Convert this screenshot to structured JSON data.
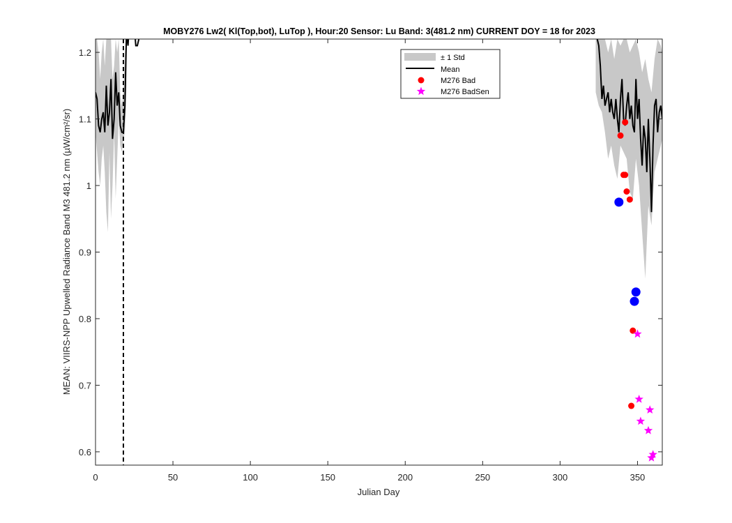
{
  "chart_data": {
    "type": "line",
    "title": "MOBY276   Lw2( Kl(Top,bot), LuTop ),   Hour:20 Sensor: Lu Band: 3(481.2 nm)   CURRENT DOY = 18 for 2023",
    "xlabel": "Julian Day",
    "ylabel": "MEAN: VIIRS-NPP Upwelled Radiance Band M3 481.2 nm (µW/cm²/sr)",
    "xlim": [
      0,
      366
    ],
    "ylim": [
      0.58,
      1.22
    ],
    "xticks": [
      0,
      50,
      100,
      150,
      200,
      250,
      300,
      350
    ],
    "yticks": [
      0.6,
      0.7,
      0.8,
      0.9,
      1.0,
      1.1,
      1.2
    ],
    "ytick_labels": [
      "0.6",
      "0.7",
      "0.8",
      "0.9",
      "1",
      "1.1",
      "1.2"
    ],
    "grid": false,
    "legend_position": "top-right",
    "current_doy": 18,
    "colors": {
      "std_band": "#c8c8c8",
      "mean": "#000000",
      "bad": "#ff0000",
      "badsen": "#ff00ff",
      "blue": "#0000ff"
    },
    "series": [
      {
        "name": "Mean",
        "kind": "line",
        "x": [
          0,
          1,
          2,
          3,
          4,
          5,
          6,
          7,
          8,
          9,
          10,
          11,
          12,
          13,
          14,
          15,
          16,
          17,
          18,
          19,
          20,
          21,
          22,
          23,
          24,
          25,
          26,
          27,
          28,
          29,
          30
        ],
        "y": [
          1.14,
          1.13,
          1.09,
          1.08,
          1.1,
          1.11,
          1.08,
          1.15,
          1.09,
          1.11,
          1.16,
          1.07,
          1.1,
          1.17,
          1.12,
          1.14,
          1.09,
          1.08,
          1.08,
          1.12,
          1.23,
          1.21,
          1.25,
          1.23,
          1.22,
          1.24,
          1.21,
          1.21,
          1.22,
          1.23,
          1.22
        ]
      },
      {
        "name": "Mean",
        "kind": "line",
        "x": [
          323,
          324,
          325,
          326,
          327,
          328,
          329,
          330,
          331,
          332,
          333,
          334,
          335,
          336,
          337,
          338,
          339,
          340,
          341,
          342,
          343,
          344,
          345,
          346,
          347,
          348,
          349,
          350,
          351,
          352,
          353,
          354,
          355,
          356,
          357,
          358,
          359,
          360,
          361,
          362,
          363,
          364,
          365,
          366
        ],
        "y": [
          1.24,
          1.22,
          1.21,
          1.18,
          1.13,
          1.15,
          1.12,
          1.13,
          1.14,
          1.11,
          1.13,
          1.11,
          1.1,
          1.13,
          1.1,
          1.08,
          1.13,
          1.16,
          1.1,
          1.09,
          1.12,
          1.14,
          1.1,
          1.12,
          1.09,
          1.08,
          1.16,
          1.1,
          1.13,
          1.07,
          1.03,
          1.09,
          1.07,
          1.02,
          1.1,
          1.04,
          0.96,
          1.06,
          1.12,
          1.13,
          1.08,
          1.11,
          1.12,
          1.1
        ]
      },
      {
        "name": "± 1 Std",
        "kind": "band",
        "x": [
          0,
          1,
          2,
          3,
          4,
          5,
          6,
          7,
          8,
          9,
          10,
          11,
          12,
          13,
          14,
          15,
          16,
          17,
          18,
          19,
          20
        ],
        "lower": [
          1.08,
          1.05,
          1.02,
          1.0,
          1.04,
          1.06,
          1.02,
          0.96,
          0.93,
          1.05,
          0.95,
          1.0,
          1.08,
          0.98,
          1.04,
          1.1,
          1.06,
          1.05,
          1.07,
          1.08,
          1.15
        ],
        "upper": [
          1.22,
          1.22,
          1.2,
          1.16,
          1.2,
          1.22,
          1.18,
          1.22,
          1.22,
          1.22,
          1.22,
          1.16,
          1.18,
          1.22,
          1.2,
          1.22,
          1.14,
          1.12,
          1.14,
          1.2,
          1.22
        ]
      },
      {
        "name": "± 1 Std",
        "kind": "band",
        "x": [
          323,
          325,
          327,
          329,
          331,
          333,
          335,
          337,
          339,
          341,
          343,
          345,
          347,
          349,
          351,
          353,
          355,
          357,
          359,
          361,
          363,
          365,
          366
        ],
        "lower": [
          1.14,
          1.12,
          1.11,
          1.08,
          1.04,
          1.06,
          1.03,
          1.01,
          1.06,
          1.05,
          1.04,
          0.99,
          0.98,
          1.04,
          1.0,
          0.93,
          0.86,
          0.97,
          0.94,
          1.02,
          1.04,
          1.06,
          1.07
        ],
        "upper": [
          1.22,
          1.22,
          1.22,
          1.22,
          1.2,
          1.22,
          1.19,
          1.22,
          1.21,
          1.22,
          1.22,
          1.2,
          1.21,
          1.22,
          1.2,
          1.17,
          1.19,
          1.16,
          1.14,
          1.19,
          1.22,
          1.21,
          1.2
        ]
      },
      {
        "name": "M276 Bad",
        "kind": "scatter",
        "marker": "circle",
        "x": [
          339,
          341,
          342,
          342,
          343,
          345,
          346,
          347
        ],
        "y": [
          1.075,
          1.016,
          1.016,
          1.095,
          0.991,
          0.979,
          0.669,
          0.782
        ]
      },
      {
        "name": "M276 BadSen",
        "kind": "scatter",
        "marker": "star",
        "x": [
          350,
          351,
          352,
          357,
          358,
          359,
          360
        ],
        "y": [
          0.777,
          0.679,
          0.646,
          0.632,
          0.663,
          0.591,
          0.596
        ]
      },
      {
        "kind": "scatter",
        "marker": "circle-large",
        "x": [
          338,
          348,
          349
        ],
        "y": [
          0.975,
          0.826,
          0.84
        ]
      }
    ],
    "legend": [
      {
        "label": "± 1 Std",
        "swatch": "band"
      },
      {
        "label": "Mean",
        "swatch": "line"
      },
      {
        "label": "M276 Bad",
        "swatch": "circle"
      },
      {
        "label": "M276 BadSen",
        "swatch": "star"
      }
    ]
  }
}
